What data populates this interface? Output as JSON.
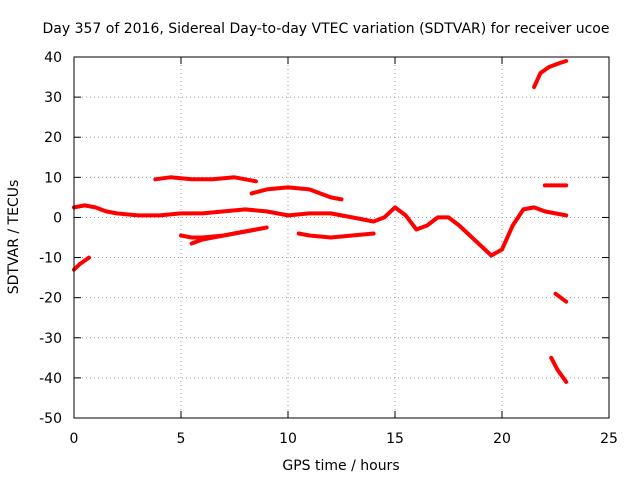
{
  "chart_data": {
    "type": "line",
    "title": "Day 357 of 2016, Sidereal Day-to-day VTEC variation (SDTVAR) for receiver ucoe",
    "xlabel": "GPS time / hours",
    "ylabel": "SDTVAR / TECUs",
    "xlim": [
      0,
      25
    ],
    "ylim": [
      -50,
      40
    ],
    "xticks": [
      0,
      5,
      10,
      15,
      20,
      25
    ],
    "yticks": [
      -50,
      -40,
      -30,
      -20,
      -10,
      0,
      10,
      20,
      30,
      40
    ],
    "grid": true,
    "color": "#ff0000",
    "series": [
      {
        "name": "s1",
        "x": [
          0,
          0.3,
          0.7
        ],
        "y": [
          -13,
          -11.5,
          -10
        ]
      },
      {
        "name": "s2",
        "x": [
          0,
          0.5,
          1.0,
          1.5,
          2,
          3,
          4,
          5,
          6,
          7,
          8,
          9,
          10,
          11,
          12,
          13,
          14,
          14.5,
          15,
          15.5,
          16,
          16.5,
          17,
          17.5,
          18,
          18.5,
          19,
          19.5,
          20,
          20.5,
          21,
          21.5,
          22,
          22.5,
          23
        ],
        "y": [
          2.5,
          3,
          2.5,
          1.5,
          1,
          0.5,
          0.5,
          1,
          1,
          1.5,
          2,
          1.5,
          0.5,
          1,
          1,
          0,
          -1,
          0,
          2.5,
          0.5,
          -3,
          -2,
          0,
          0,
          -2,
          -4.5,
          -7,
          -9.5,
          -8,
          -2,
          2,
          2.5,
          1.5,
          1,
          0.5
        ]
      },
      {
        "name": "s3",
        "x": [
          3.8,
          4.5,
          5.5,
          6.5,
          7.5,
          8.5
        ],
        "y": [
          9.5,
          10,
          9.5,
          9.5,
          10,
          9
        ]
      },
      {
        "name": "s4",
        "x": [
          8.3,
          9,
          10,
          11,
          12,
          12.5
        ],
        "y": [
          6,
          7,
          7.5,
          7,
          5,
          4.5
        ]
      },
      {
        "name": "s5",
        "x": [
          5.0,
          5.5,
          6,
          7,
          8,
          8.5,
          9.0
        ],
        "y": [
          -4.5,
          -5,
          -5,
          -4.5,
          -3.5,
          -3,
          -2.5
        ]
      },
      {
        "name": "s6",
        "x": [
          5.5,
          6,
          6.5,
          7,
          7.5,
          8.5
        ],
        "y": [
          -6.5,
          -5.5,
          -5,
          -4.5,
          -4,
          -3
        ]
      },
      {
        "name": "s7",
        "x": [
          10.5,
          11,
          12,
          13,
          14
        ],
        "y": [
          -4,
          -4.5,
          -5,
          -4.5,
          -4
        ]
      },
      {
        "name": "s8",
        "x": [
          21.5,
          21.8,
          22.2,
          22.7,
          23
        ],
        "y": [
          32.5,
          36,
          37.5,
          38.5,
          39
        ]
      },
      {
        "name": "s9",
        "x": [
          22.0,
          23
        ],
        "y": [
          8,
          8
        ]
      },
      {
        "name": "s10",
        "x": [
          22.5,
          23
        ],
        "y": [
          -19,
          -21
        ]
      },
      {
        "name": "s11",
        "x": [
          22.3,
          22.6,
          23
        ],
        "y": [
          -35,
          -38,
          -41
        ]
      }
    ]
  }
}
